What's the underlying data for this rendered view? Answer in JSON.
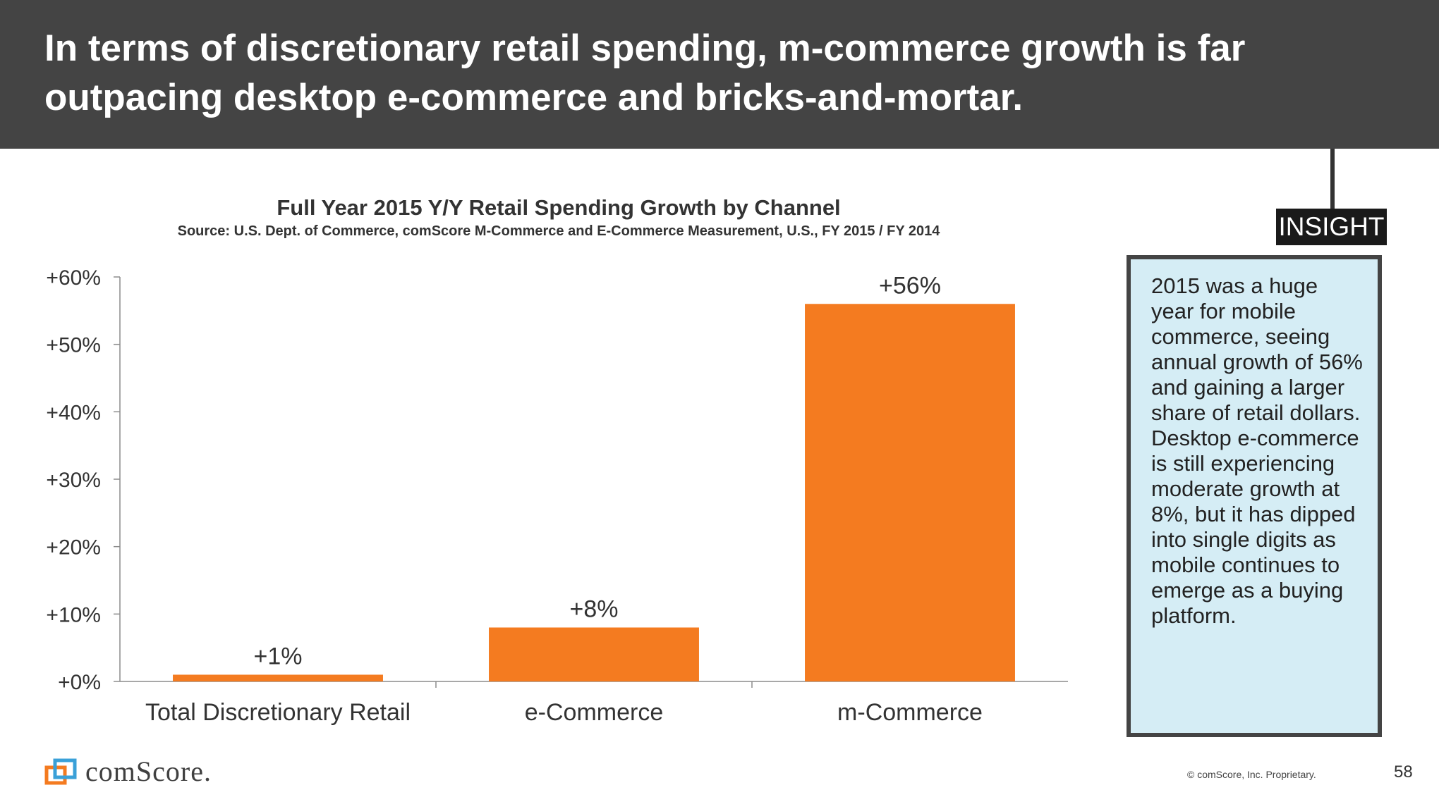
{
  "header": {
    "title": "In terms of discretionary retail spending, m-commerce growth is far outpacing desktop e-commerce and bricks-and-mortar."
  },
  "chart_data": {
    "type": "bar",
    "title": "Full Year 2015 Y/Y Retail Spending Growth by Channel",
    "subtitle": "Source: U.S. Dept. of Commerce, comScore M-Commerce and E-Commerce Measurement, U.S., FY 2015 / FY 2014",
    "categories": [
      "Total Discretionary Retail",
      "e-Commerce",
      "m-Commerce"
    ],
    "values": [
      1,
      8,
      56
    ],
    "value_labels": [
      "+1%",
      "+8%",
      "+56%"
    ],
    "ylim": [
      0,
      60
    ],
    "yticks": [
      0,
      10,
      20,
      30,
      40,
      50,
      60
    ],
    "ytick_labels": [
      "+0%",
      "+10%",
      "+20%",
      "+30%",
      "+40%",
      "+50%",
      "+60%"
    ],
    "xlabel": "",
    "ylabel": "",
    "bar_color": "#f47b20",
    "grid": false
  },
  "insight": {
    "label": "INSIGHT",
    "text": "2015 was a huge year for mobile commerce, seeing annual growth of 56% and gaining a larger share of retail dollars. Desktop e-commerce is still experiencing moderate growth at 8%, but it has dipped into single digits as mobile continues to emerge as a buying platform."
  },
  "footer": {
    "logo_text": "comScore.",
    "copyright": "© comScore, Inc. Proprietary.",
    "page_number": "58"
  },
  "colors": {
    "header_bg": "#444444",
    "accent": "#f47b20",
    "insight_bg": "#d5edf5"
  }
}
